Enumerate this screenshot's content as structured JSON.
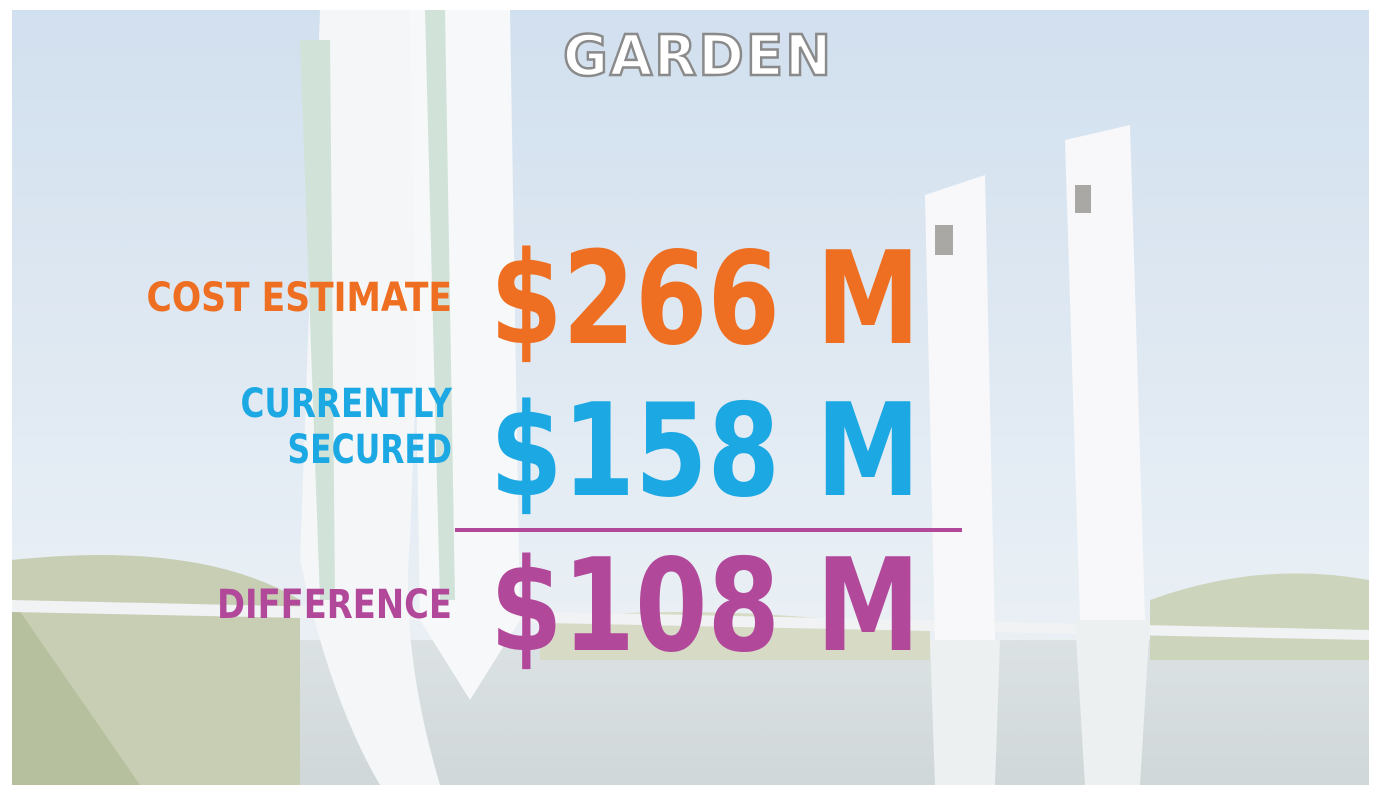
{
  "header": {
    "title": "GARDEN"
  },
  "rows": [
    {
      "label_lines": [
        "COST ESTIMATE"
      ],
      "value": "$266 M",
      "color": "#ef6f22"
    },
    {
      "label_lines": [
        "CURRENTLY",
        "SECURED"
      ],
      "value": "$158 M",
      "color": "#1ca8e3"
    },
    {
      "label_lines": [
        "DIFFERENCE"
      ],
      "value": "$108 M",
      "color": "#b2489a"
    }
  ]
}
